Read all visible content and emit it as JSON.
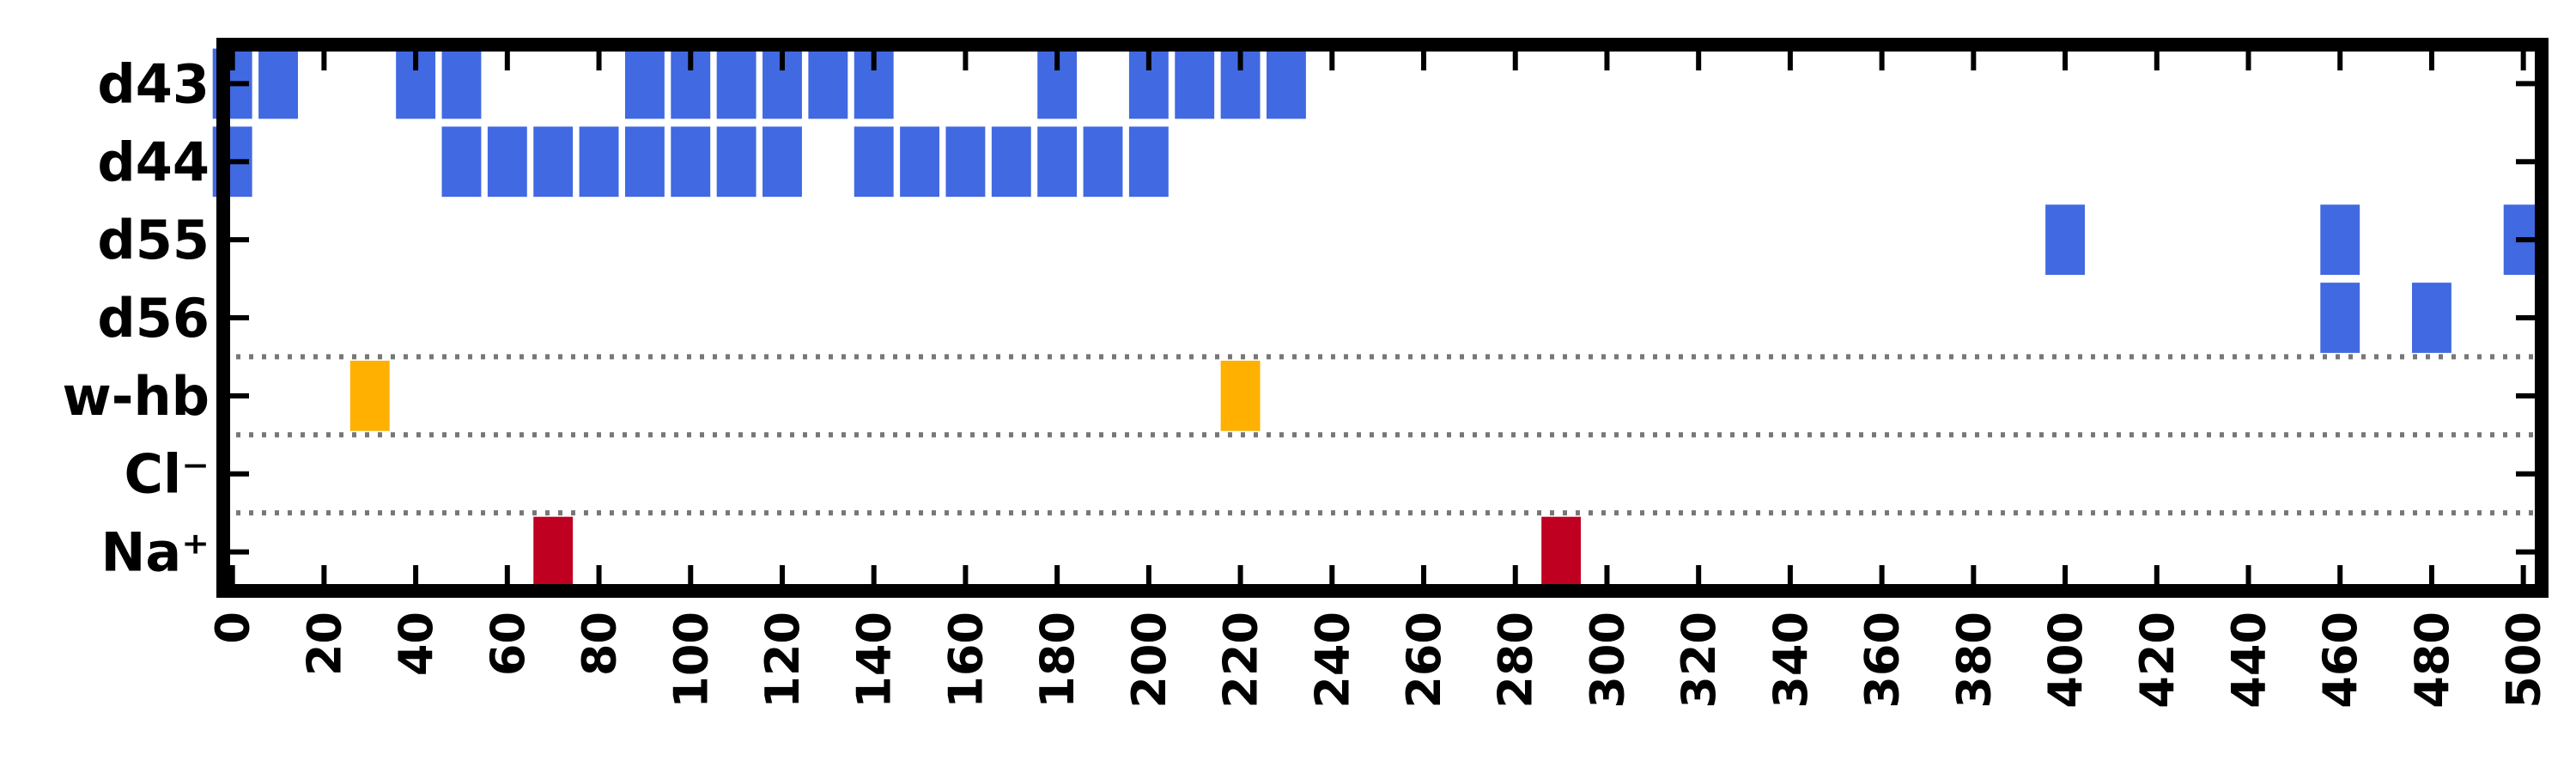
{
  "chart_data": {
    "type": "heatmap",
    "title": "",
    "xlabel": "",
    "ylabel": "",
    "xlim": [
      -2,
      504
    ],
    "x_ticks": [
      "0",
      "20",
      "40",
      "60",
      "80",
      "100",
      "120",
      "140",
      "160",
      "180",
      "200",
      "220",
      "240",
      "260",
      "280",
      "300",
      "320",
      "340",
      "360",
      "380",
      "400",
      "420",
      "440",
      "460",
      "480",
      "500"
    ],
    "rows": [
      {
        "label": "d43",
        "color": "#4169e1",
        "x": [
          0,
          10,
          40,
          50,
          90,
          100,
          110,
          120,
          130,
          140,
          180,
          200,
          210,
          220,
          230
        ]
      },
      {
        "label": "d44",
        "color": "#4169e1",
        "x": [
          0,
          50,
          60,
          70,
          80,
          90,
          100,
          110,
          120,
          140,
          150,
          160,
          170,
          180,
          190,
          200
        ]
      },
      {
        "label": "d55",
        "color": "#4169e1",
        "x": [
          400,
          460,
          500
        ]
      },
      {
        "label": "d56",
        "color": "#4169e1",
        "x": [
          460,
          480
        ]
      },
      {
        "label": "w-hb",
        "color": "#ffb000",
        "x": [
          30,
          220
        ]
      },
      {
        "label": "Cl⁻",
        "color": "#c00020",
        "x": []
      },
      {
        "label": "Na⁺",
        "color": "#c00020",
        "x": [
          70,
          290
        ]
      }
    ],
    "group_separators": "dotted lines between d56/w-hb, w-hb/Cl⁻, Cl⁻/Na⁺",
    "grid": false,
    "legend": "none"
  }
}
